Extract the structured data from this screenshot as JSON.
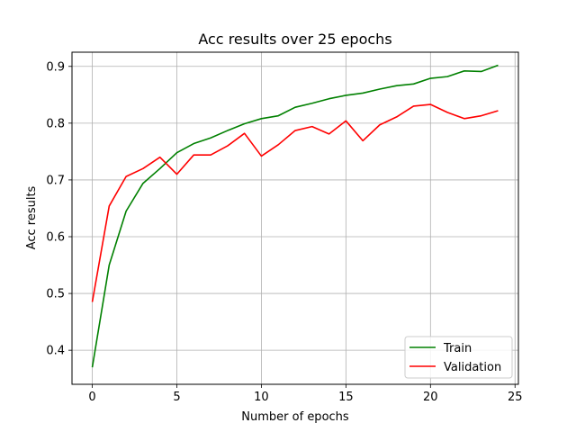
{
  "chart_data": {
    "type": "line",
    "title": "Acc results over 25 epochs",
    "xlabel": "Number of epochs",
    "ylabel": "Acc results",
    "xlim": [
      -1.2,
      25.2
    ],
    "ylim": [
      0.34,
      0.925
    ],
    "xticks": [
      0,
      5,
      10,
      15,
      20,
      25
    ],
    "yticks": [
      0.4,
      0.5,
      0.6,
      0.7,
      0.8,
      0.9
    ],
    "xtick_labels": [
      "0",
      "5",
      "10",
      "15",
      "20",
      "25"
    ],
    "ytick_labels": [
      "0.4",
      "0.5",
      "0.6",
      "0.7",
      "0.8",
      "0.9"
    ],
    "grid": true,
    "legend_position": "lower-right",
    "x": [
      0,
      1,
      2,
      3,
      4,
      5,
      6,
      7,
      8,
      9,
      10,
      11,
      12,
      13,
      14,
      15,
      16,
      17,
      18,
      19,
      20,
      21,
      22,
      23,
      24
    ],
    "series": [
      {
        "name": "Train",
        "color": "#008000",
        "values": [
          0.37,
          0.55,
          0.645,
          0.694,
          0.72,
          0.748,
          0.764,
          0.774,
          0.787,
          0.799,
          0.808,
          0.813,
          0.828,
          0.835,
          0.843,
          0.849,
          0.853,
          0.86,
          0.866,
          0.869,
          0.879,
          0.882,
          0.892,
          0.891,
          0.902
        ]
      },
      {
        "name": "Validation",
        "color": "#ff0000",
        "values": [
          0.485,
          0.654,
          0.706,
          0.72,
          0.74,
          0.71,
          0.744,
          0.744,
          0.76,
          0.782,
          0.742,
          0.762,
          0.787,
          0.794,
          0.781,
          0.804,
          0.769,
          0.797,
          0.811,
          0.83,
          0.833,
          0.819,
          0.808,
          0.813,
          0.822
        ]
      }
    ]
  }
}
